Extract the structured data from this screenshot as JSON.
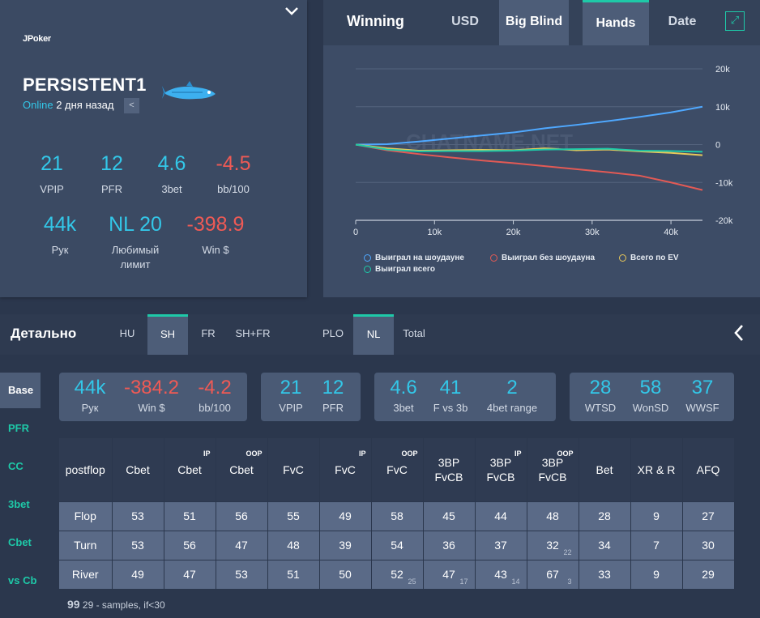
{
  "profile": {
    "logo_text": "JPoker",
    "name": "PERSISTENT1",
    "online": "Online",
    "last_seen": "2 дня назад",
    "stats": [
      {
        "value": "21",
        "label": "VPIP",
        "color": "#33c7e8"
      },
      {
        "value": "12",
        "label": "PFR",
        "color": "#33c7e8"
      },
      {
        "value": "4.6",
        "label": "3bet",
        "color": "#33c7e8"
      },
      {
        "value": "-4.5",
        "label": "bb/100",
        "color": "#ef5a55"
      },
      {
        "value": "44k",
        "label": "Рук",
        "color": "#33c7e8"
      },
      {
        "value": "NL 20",
        "label": "Любимый лимит",
        "color": "#33c7e8"
      },
      {
        "value": "-398.9",
        "label": "Win $",
        "color": "#ef5a55"
      }
    ]
  },
  "chart_panel": {
    "title": "Winning",
    "tabs": [
      "USD",
      "Big Blind",
      "Hands",
      "Date"
    ],
    "active_tabs": [
      "Big Blind",
      "Hands"
    ],
    "watermark": "CHATNAME.NET"
  },
  "chart_data": {
    "type": "line",
    "x_ticks": [
      "0",
      "10k",
      "20k",
      "30k",
      "40k"
    ],
    "y_ticks": [
      "20k",
      "10k",
      "0",
      "-10k",
      "-20k"
    ],
    "xlim": [
      0,
      44000
    ],
    "ylim": [
      -20000,
      20000
    ],
    "grid": true,
    "legend_position": "bottom",
    "x": [
      0,
      4000,
      8000,
      12000,
      16000,
      20000,
      24000,
      28000,
      32000,
      36000,
      40000,
      44000
    ],
    "series": [
      {
        "name": "Выиграл на шоудауне",
        "color": "#4fa8ff",
        "values": [
          0,
          100,
          800,
          1600,
          2400,
          3200,
          4300,
          5200,
          6200,
          7300,
          8500,
          10000
        ]
      },
      {
        "name": "Выиграл без шоудауна",
        "color": "#e35a55",
        "values": [
          0,
          -1500,
          -2500,
          -3400,
          -4200,
          -4900,
          -5700,
          -6500,
          -7300,
          -8200,
          -10000,
          -12000
        ]
      },
      {
        "name": "Всего по EV",
        "color": "#e8c85a",
        "values": [
          0,
          -1000,
          -1600,
          -1500,
          -1400,
          -1500,
          -1000,
          -1500,
          -1300,
          -1800,
          -2200,
          -2800
        ]
      },
      {
        "name": "Выиграл всего",
        "color": "#1ec9a8",
        "values": [
          0,
          -1300,
          -1800,
          -1700,
          -1700,
          -1600,
          -1300,
          -1200,
          -1100,
          -1600,
          -1700,
          -1900
        ]
      }
    ]
  },
  "detail": {
    "title": "Детально",
    "tabs": [
      "HU",
      "SH",
      "FR",
      "SH+FR",
      "PLO",
      "NL",
      "Total"
    ],
    "active_tabs": [
      "SH",
      "NL"
    ],
    "side_menu": [
      "Base",
      "PFR",
      "CC",
      "3bet",
      "Cbet",
      "vs Cb"
    ],
    "active_side": "Base"
  },
  "cards": [
    {
      "cells": [
        {
          "value": "44k",
          "label": "Рук"
        },
        {
          "value": "-384.2",
          "label": "Win $",
          "neg": true
        },
        {
          "value": "-4.2",
          "label": "bb/100",
          "neg": true
        }
      ]
    },
    {
      "cells": [
        {
          "value": "21",
          "label": "VPIP"
        },
        {
          "value": "12",
          "label": "PFR"
        }
      ]
    },
    {
      "cells": [
        {
          "value": "4.6",
          "label": "3bet"
        },
        {
          "value": "41",
          "label": "F vs 3b"
        },
        {
          "value": "2",
          "label": "4bet range"
        }
      ]
    },
    {
      "cells": [
        {
          "value": "28",
          "label": "WTSD"
        },
        {
          "value": "58",
          "label": "WonSD"
        },
        {
          "value": "37",
          "label": "WWSF"
        }
      ]
    }
  ],
  "table": {
    "headers": [
      {
        "label": "postflop",
        "sup": ""
      },
      {
        "label": "Cbet",
        "sup": ""
      },
      {
        "label": "Cbet",
        "sup": "IP"
      },
      {
        "label": "Cbet",
        "sup": "OOP"
      },
      {
        "label": "FvC",
        "sup": ""
      },
      {
        "label": "FvC",
        "sup": "IP"
      },
      {
        "label": "FvC",
        "sup": "OOP"
      },
      {
        "label": "3BP FvCB",
        "sup": ""
      },
      {
        "label": "3BP FvCB",
        "sup": "IP"
      },
      {
        "label": "3BP FvCB",
        "sup": "OOP"
      },
      {
        "label": "Bet",
        "sup": ""
      },
      {
        "label": "XR & R",
        "sup": ""
      },
      {
        "label": "AFQ",
        "sup": ""
      }
    ],
    "rows": [
      {
        "name": "Flop",
        "cells": [
          {
            "v": "53"
          },
          {
            "v": "51"
          },
          {
            "v": "56"
          },
          {
            "v": "55"
          },
          {
            "v": "49"
          },
          {
            "v": "58"
          },
          {
            "v": "45"
          },
          {
            "v": "44"
          },
          {
            "v": "48"
          },
          {
            "v": "28"
          },
          {
            "v": "9"
          },
          {
            "v": "27"
          }
        ]
      },
      {
        "name": "Turn",
        "cells": [
          {
            "v": "53"
          },
          {
            "v": "56"
          },
          {
            "v": "47"
          },
          {
            "v": "48"
          },
          {
            "v": "39"
          },
          {
            "v": "54"
          },
          {
            "v": "36"
          },
          {
            "v": "37"
          },
          {
            "v": "32",
            "s": "22"
          },
          {
            "v": "34"
          },
          {
            "v": "7"
          },
          {
            "v": "30"
          }
        ]
      },
      {
        "name": "River",
        "cells": [
          {
            "v": "49"
          },
          {
            "v": "47"
          },
          {
            "v": "53"
          },
          {
            "v": "51"
          },
          {
            "v": "50"
          },
          {
            "v": "52",
            "s": "25"
          },
          {
            "v": "47",
            "s": "17"
          },
          {
            "v": "43",
            "s": "14"
          },
          {
            "v": "67",
            "s": "3"
          },
          {
            "v": "33"
          },
          {
            "v": "9"
          },
          {
            "v": "29"
          }
        ]
      }
    ],
    "note_bold": "99",
    "note_text": "29 - samples, if<30"
  }
}
